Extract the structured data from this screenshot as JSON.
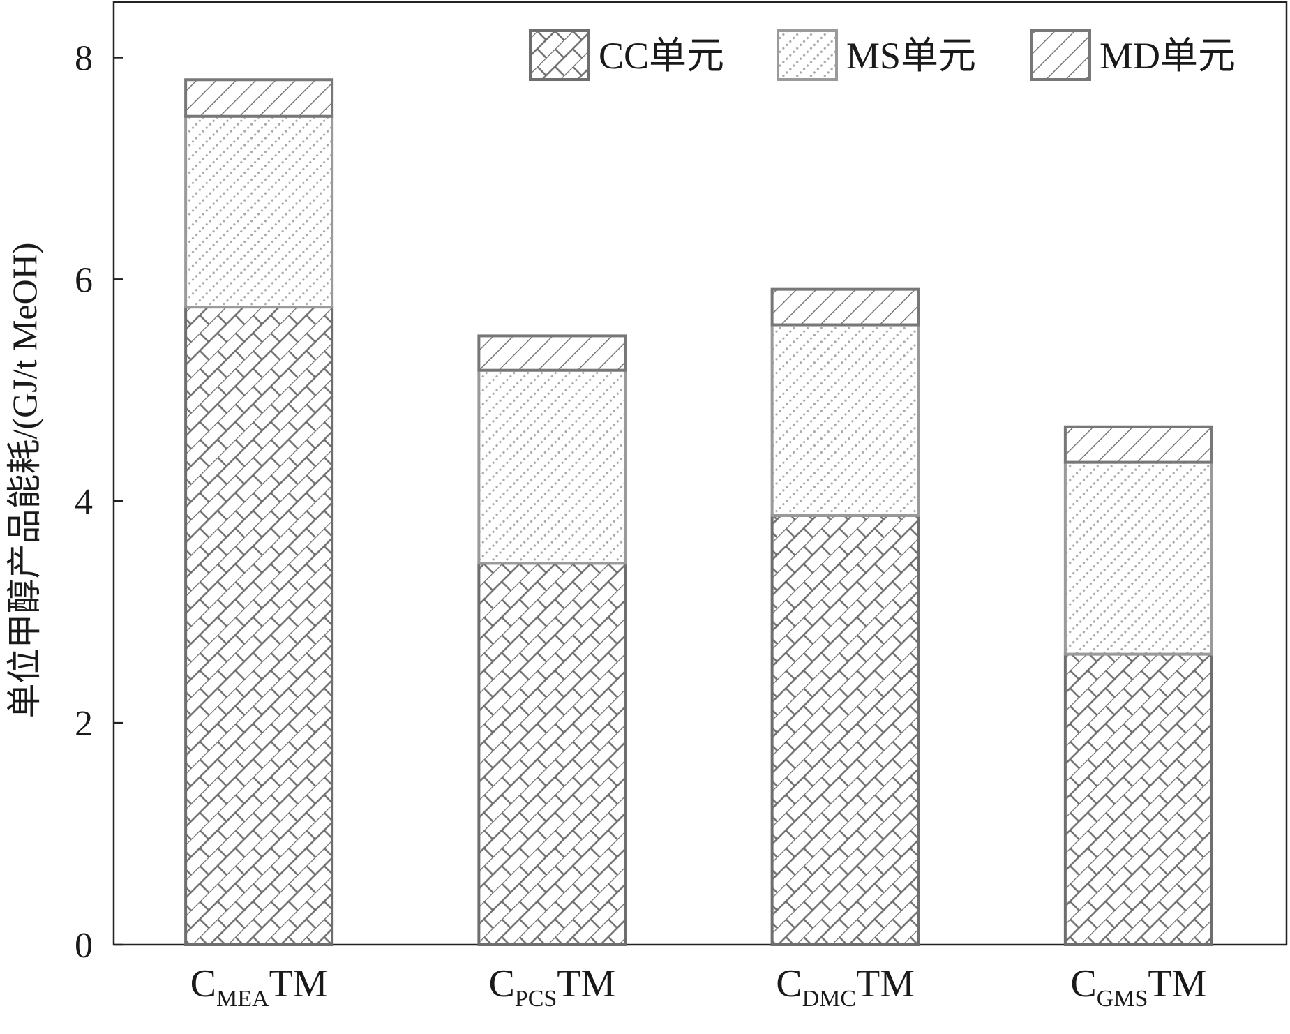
{
  "chart_data": {
    "type": "bar",
    "stacked": true,
    "categories": [
      {
        "prefix": "C",
        "sub": "MEA",
        "suffix": "TM"
      },
      {
        "prefix": "C",
        "sub": "PCS",
        "suffix": "TM"
      },
      {
        "prefix": "C",
        "sub": "DMC",
        "suffix": "TM"
      },
      {
        "prefix": "C",
        "sub": "GMS",
        "suffix": "TM"
      }
    ],
    "series": [
      {
        "name": "CC单元",
        "values": [
          5.75,
          3.44,
          3.87,
          2.62
        ],
        "pattern": "brick",
        "stroke": "#6e6e6e"
      },
      {
        "name": "MS单元",
        "values": [
          1.72,
          1.74,
          1.72,
          1.73
        ],
        "pattern": "dots",
        "stroke": "#9a9a9a"
      },
      {
        "name": "MD单元",
        "values": [
          0.33,
          0.31,
          0.32,
          0.32
        ],
        "pattern": "hatch",
        "stroke": "#777777"
      }
    ],
    "title": "",
    "xlabel": "",
    "ylabel": "单位甲醇产品能耗/(GJ/t MeOH)",
    "ylim": [
      0,
      8.5
    ],
    "yticks": [
      0,
      2,
      4,
      6,
      8
    ],
    "grid": false,
    "legend_position": "top-right"
  }
}
